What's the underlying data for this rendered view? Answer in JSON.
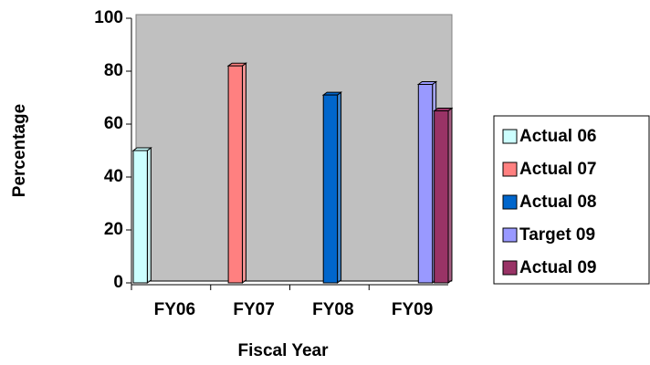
{
  "chart_data": {
    "type": "bar",
    "categories": [
      "FY06",
      "FY07",
      "FY08",
      "FY09"
    ],
    "series": [
      {
        "name": "Actual 06",
        "color": "#ccffff",
        "values": [
          50,
          null,
          null,
          null
        ]
      },
      {
        "name": "Actual 07",
        "color": "#ff8080",
        "values": [
          null,
          82,
          null,
          null
        ]
      },
      {
        "name": "Actual 08",
        "color": "#0066cc",
        "values": [
          null,
          null,
          71,
          null
        ]
      },
      {
        "name": "Target 09",
        "color": "#9999ff",
        "values": [
          null,
          null,
          null,
          75
        ]
      },
      {
        "name": "Actual 09",
        "color": "#993366",
        "values": [
          null,
          null,
          null,
          65
        ]
      }
    ],
    "xlabel": "Fiscal Year",
    "ylabel": "Percentage",
    "ylim": [
      0,
      100
    ],
    "yticks": [
      0,
      20,
      40,
      60,
      80,
      100
    ],
    "legend": "right"
  }
}
